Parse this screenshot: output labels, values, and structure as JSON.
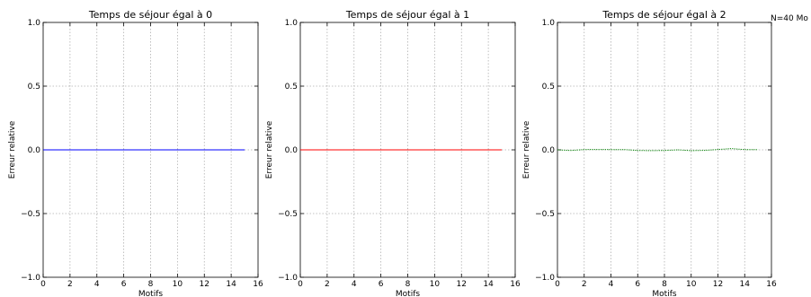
{
  "chart_data": [
    {
      "type": "line",
      "title": "Temps de séjour égal à 0",
      "xlabel": "Motifs",
      "ylabel": "Erreur relative",
      "xlim": [
        0,
        16
      ],
      "ylim": [
        -1.0,
        1.0
      ],
      "xticks": [
        "0",
        "2",
        "4",
        "6",
        "8",
        "10",
        "12",
        "14",
        "16"
      ],
      "yticks": [
        "−1.0",
        "−0.5",
        "0.0",
        "0.5",
        "1.0"
      ],
      "grid": true,
      "series": [
        {
          "color": "#0000ff",
          "linestyle": "solid",
          "x": [
            0,
            15
          ],
          "y": [
            0.0,
            0.0
          ]
        }
      ]
    },
    {
      "type": "line",
      "title": "Temps de séjour égal à 1",
      "xlabel": "Motifs",
      "ylabel": "Erreur relative",
      "xlim": [
        0,
        16
      ],
      "ylim": [
        -1.0,
        1.0
      ],
      "xticks": [
        "0",
        "2",
        "4",
        "6",
        "8",
        "10",
        "12",
        "14",
        "16"
      ],
      "yticks": [
        "−1.0",
        "−0.5",
        "0.0",
        "0.5",
        "1.0"
      ],
      "grid": true,
      "series": [
        {
          "color": "#ff0000",
          "linestyle": "solid",
          "x": [
            0,
            15
          ],
          "y": [
            0.0,
            0.0
          ]
        }
      ]
    },
    {
      "type": "line",
      "title": "Temps de séjour égal à 2",
      "xlabel": "Motifs",
      "ylabel": "Erreur relative",
      "xlim": [
        0,
        16
      ],
      "ylim": [
        -1.0,
        1.0
      ],
      "xticks": [
        "0",
        "2",
        "4",
        "6",
        "8",
        "10",
        "12",
        "14",
        "16"
      ],
      "yticks": [
        "−1.0",
        "−0.5",
        "0.0",
        "0.5",
        "1.0"
      ],
      "grid": true,
      "series": [
        {
          "color": "#008000",
          "linestyle": "dotted",
          "x": [
            0,
            1,
            2,
            3,
            4,
            5,
            6,
            7,
            8,
            9,
            10,
            11,
            12,
            13,
            14,
            15
          ],
          "y": [
            0.0,
            -0.005,
            0.002,
            0.003,
            0.002,
            0.002,
            -0.005,
            -0.006,
            -0.005,
            0.0,
            -0.006,
            -0.004,
            0.003,
            0.01,
            0.002,
            0.002
          ]
        }
      ]
    }
  ],
  "annotation": "N=40 Mo"
}
